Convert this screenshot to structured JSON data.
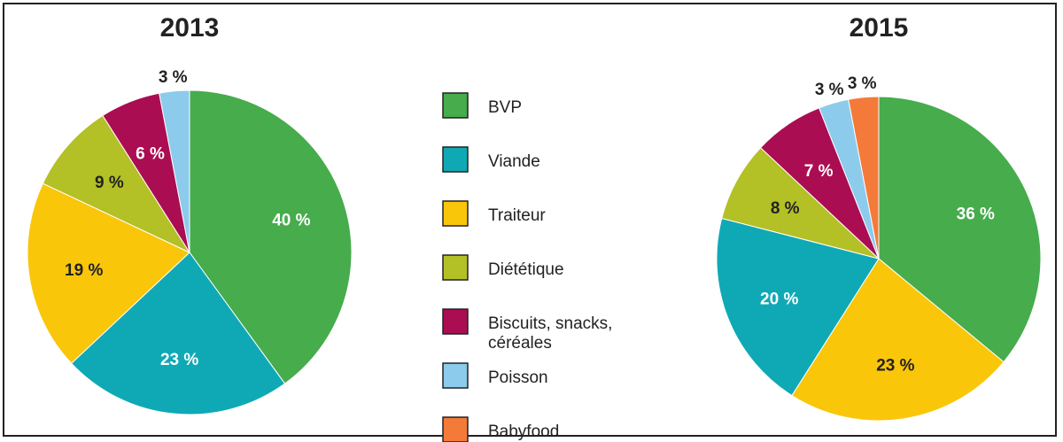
{
  "chart_data": [
    {
      "type": "pie",
      "title": "2013",
      "slices": [
        {
          "category": "BVP",
          "value": 40,
          "label": "40 %",
          "label_color": "#ffffff"
        },
        {
          "category": "Viande",
          "value": 23,
          "label": "23 %",
          "label_color": "#ffffff"
        },
        {
          "category": "Traiteur",
          "value": 19,
          "label": "19 %",
          "label_color": "#222222"
        },
        {
          "category": "Diététique",
          "value": 9,
          "label": "9 %",
          "label_color": "#222222"
        },
        {
          "category": "Biscuits, snacks, céréales",
          "value": 6,
          "label": "6 %",
          "label_color": "#ffffff"
        },
        {
          "category": "Poisson",
          "value": 3,
          "label": "3 %",
          "label_color": "#222222"
        }
      ]
    },
    {
      "type": "pie",
      "title": "2015",
      "slices": [
        {
          "category": "BVP",
          "value": 36,
          "label": "36 %",
          "label_color": "#ffffff"
        },
        {
          "category": "Traiteur",
          "value": 23,
          "label": "23 %",
          "label_color": "#222222"
        },
        {
          "category": "Viande",
          "value": 20,
          "label": "20 %",
          "label_color": "#ffffff"
        },
        {
          "category": "Diététique",
          "value": 8,
          "label": "8 %",
          "label_color": "#222222"
        },
        {
          "category": "Biscuits, snacks, céréales",
          "value": 7,
          "label": "7 %",
          "label_color": "#ffffff"
        },
        {
          "category": "Poisson",
          "value": 3,
          "label": "3 %",
          "label_color": "#222222"
        },
        {
          "category": "Babyfood",
          "value": 3,
          "label": "3 %",
          "label_color": "#222222"
        }
      ]
    }
  ],
  "legend": [
    {
      "category": "BVP",
      "lines": [
        "BVP"
      ],
      "color": "#46ac4c"
    },
    {
      "category": "Viande",
      "lines": [
        "Viande"
      ],
      "color": "#0fa9b5"
    },
    {
      "category": "Traiteur",
      "lines": [
        "Traiteur"
      ],
      "color": "#f9c60a"
    },
    {
      "category": "Diététique",
      "lines": [
        "Diététique"
      ],
      "color": "#b3c026"
    },
    {
      "category": "Biscuits, snacks, céréales",
      "lines": [
        "Biscuits, snacks,",
        "céréales"
      ],
      "color": "#ab0d52"
    },
    {
      "category": "Poisson",
      "lines": [
        "Poisson"
      ],
      "color": "#8ccbec"
    },
    {
      "category": "Babyfood",
      "lines": [
        "Babyfood"
      ],
      "color": "#f47a3a"
    }
  ]
}
